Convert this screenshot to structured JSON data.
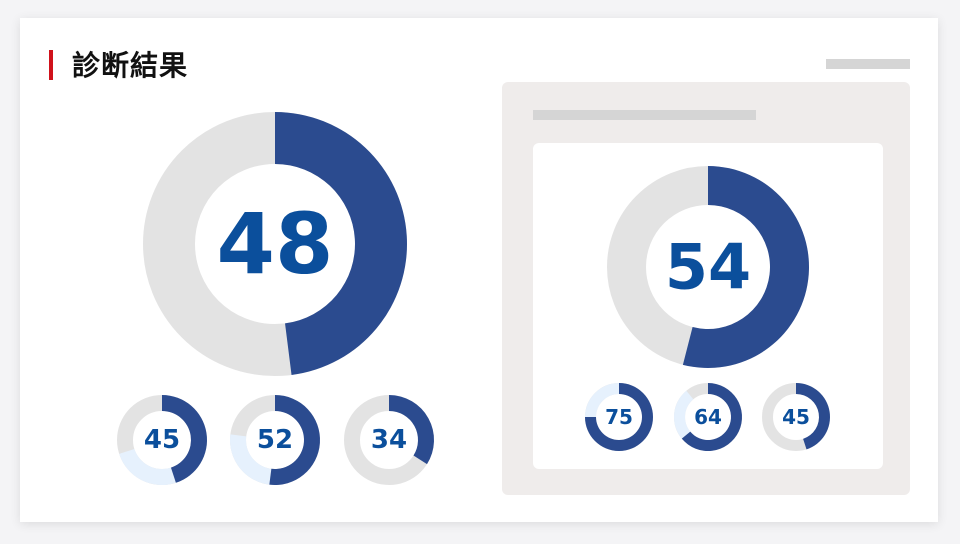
{
  "title": "診断結果",
  "colors": {
    "accent": "#d0121b",
    "primary": "#2b4b8f",
    "light": "#e6f1fd",
    "track": "#e3e3e3",
    "label": "#0b4f9c"
  },
  "chart_data": [
    {
      "type": "pie",
      "name": "main-donut",
      "values": [
        48
      ]
    },
    {
      "type": "pie",
      "name": "small-donut-1",
      "values": [
        45
      ],
      "secondary": "light"
    },
    {
      "type": "pie",
      "name": "small-donut-2",
      "values": [
        52
      ],
      "secondary": "light"
    },
    {
      "type": "pie",
      "name": "small-donut-3",
      "values": [
        34
      ]
    },
    {
      "type": "pie",
      "name": "panel-donut",
      "values": [
        54
      ]
    },
    {
      "type": "pie",
      "name": "panel-small-donut-1",
      "values": [
        75
      ],
      "secondary": "light"
    },
    {
      "type": "pie",
      "name": "panel-small-donut-2",
      "values": [
        64
      ],
      "secondary": "light"
    },
    {
      "type": "pie",
      "name": "panel-small-donut-3",
      "values": [
        45
      ]
    }
  ]
}
